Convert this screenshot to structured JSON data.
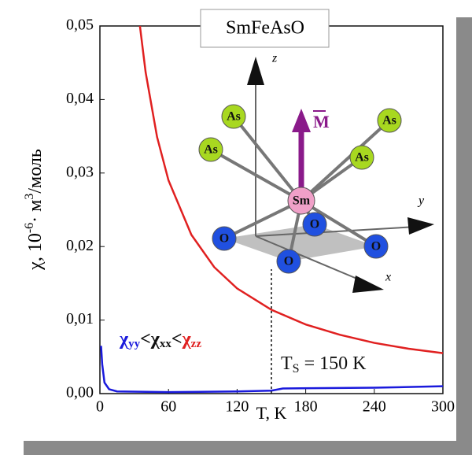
{
  "chart_data": {
    "type": "line",
    "title": "SmFeAsO",
    "x_label": "T, K",
    "y_label": {
      "main": "χ, 10",
      "exp": "-6",
      "unit": "· м",
      "unit_exp": "3",
      "tail": "/моль"
    },
    "xlim": [
      0,
      300
    ],
    "xticks": [
      0,
      60,
      120,
      180,
      240,
      300
    ],
    "ylim": [
      0,
      0.05
    ],
    "yticks": [
      {
        "value": 0,
        "label": "0,00"
      },
      {
        "value": 0.01,
        "label": "0,01"
      },
      {
        "value": 0.02,
        "label": "0,02"
      },
      {
        "value": 0.03,
        "label": "0,03"
      },
      {
        "value": 0.04,
        "label": "0,04"
      },
      {
        "value": 0.05,
        "label": "0,05"
      }
    ],
    "series": [
      {
        "color": "#e02020",
        "x": [
          35,
          40,
          50,
          60,
          80,
          100,
          120,
          150,
          180,
          210,
          240,
          270,
          300
        ],
        "values": [
          0.05,
          0.0437,
          0.0349,
          0.029,
          0.0216,
          0.0172,
          0.0143,
          0.0114,
          0.0094,
          0.008,
          0.0069,
          0.0061,
          0.0055
        ]
      },
      {
        "color": "#1a1adc",
        "x": [
          1,
          2,
          4,
          8,
          15,
          60,
          120,
          150,
          160,
          240,
          300
        ],
        "values": [
          0.0065,
          0.004,
          0.0015,
          0.0006,
          0.0003,
          0.0002,
          0.0003,
          0.0004,
          0.0007,
          0.0008,
          0.001
        ]
      }
    ],
    "legend": {
      "separator": "<",
      "items": [
        {
          "symbol": "χ",
          "subscript": "yy",
          "color": "#1a1adc"
        },
        {
          "symbol": "χ",
          "subscript": "xx",
          "color": "#111111"
        },
        {
          "symbol": "χ",
          "subscript": "zz",
          "color": "#e02020"
        }
      ]
    },
    "annotation": {
      "symbol": "T",
      "subscript": "S",
      "text": " = 150 K",
      "x": 150
    },
    "inset": {
      "atoms": [
        "As",
        "As",
        "As",
        "As",
        "Sm",
        "O",
        "O",
        "O",
        "O"
      ],
      "axes": [
        "z",
        "y",
        "x"
      ],
      "moment": "M"
    }
  }
}
